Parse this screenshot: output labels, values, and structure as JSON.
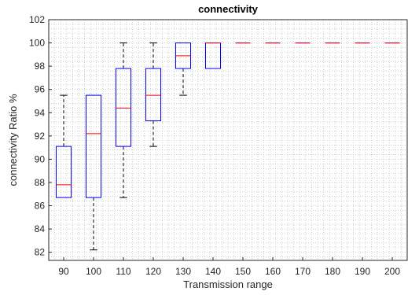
{
  "chart_data": {
    "type": "boxplot",
    "title": "connectivity",
    "xlabel": "Transmission range",
    "ylabel": "connectivity Ratio %",
    "categories": [
      "90",
      "100",
      "110",
      "120",
      "130",
      "140",
      "150",
      "160",
      "170",
      "180",
      "190",
      "200"
    ],
    "y_ticks": [
      82,
      84,
      86,
      88,
      90,
      92,
      94,
      96,
      98,
      100,
      102
    ],
    "ylim": [
      81.3,
      102
    ],
    "grid": "minor-dotted",
    "boxes": [
      {
        "category": "90",
        "whisker_low": 86.7,
        "q1": 86.7,
        "median": 87.8,
        "q3": 91.1,
        "whisker_high": 95.5
      },
      {
        "category": "100",
        "whisker_low": 82.2,
        "q1": 86.7,
        "median": 92.2,
        "q3": 95.5,
        "whisker_high": 95.5
      },
      {
        "category": "110",
        "whisker_low": 86.7,
        "q1": 91.1,
        "median": 94.4,
        "q3": 97.8,
        "whisker_high": 100
      },
      {
        "category": "120",
        "whisker_low": 91.1,
        "q1": 93.3,
        "median": 95.5,
        "q3": 97.8,
        "whisker_high": 100
      },
      {
        "category": "130",
        "whisker_low": 95.5,
        "q1": 97.8,
        "median": 98.9,
        "q3": 100,
        "whisker_high": 100
      },
      {
        "category": "140",
        "whisker_low": 97.8,
        "q1": 97.8,
        "median": 100,
        "q3": 100,
        "whisker_high": 100
      },
      {
        "category": "150",
        "whisker_low": 100,
        "q1": 100,
        "median": 100,
        "q3": 100,
        "whisker_high": 100
      },
      {
        "category": "160",
        "whisker_low": 100,
        "q1": 100,
        "median": 100,
        "q3": 100,
        "whisker_high": 100
      },
      {
        "category": "170",
        "whisker_low": 100,
        "q1": 100,
        "median": 100,
        "q3": 100,
        "whisker_high": 100
      },
      {
        "category": "180",
        "whisker_low": 100,
        "q1": 100,
        "median": 100,
        "q3": 100,
        "whisker_high": 100
      },
      {
        "category": "190",
        "whisker_low": 100,
        "q1": 100,
        "median": 100,
        "q3": 100,
        "whisker_high": 100
      },
      {
        "category": "200",
        "whisker_low": 100,
        "q1": 100,
        "median": 100,
        "q3": 100,
        "whisker_high": 100
      }
    ],
    "colors": {
      "box": "#0000ff",
      "median": "#ff0000",
      "whisker": "#000000",
      "grid": "#b0b0b0"
    }
  }
}
